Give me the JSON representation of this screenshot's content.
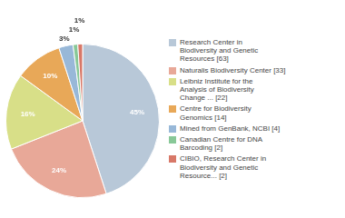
{
  "chart_data": {
    "type": "pie",
    "categories": [
      "Research Center in\nBiodiversity and Genetic\nResources [63]",
      "Naturalis Biodiversity Center [33]",
      "Leibniz Institute for the\nAnalysis of Biodiversity\nChange ... [22]",
      "Centre for Biodiversity\nGenomics [14]",
      "Mined from GenBank, NCBI [4]",
      "Canadian Centre for DNA\nBarcoding [2]",
      "CIBIO, Research Center in\nBiodiversity and Genetic\nResource... [2]"
    ],
    "values": [
      45,
      24,
      16,
      10,
      3,
      1,
      1
    ],
    "value_labels": [
      "45%",
      "24%",
      "16%",
      "10%",
      "3%",
      "1%",
      "1%"
    ],
    "colors": [
      "#b8c8d8",
      "#e8a898",
      "#d8df88",
      "#e8a858",
      "#98b8d8",
      "#88c898",
      "#d87868"
    ],
    "data_labels": true,
    "legend": "right"
  }
}
